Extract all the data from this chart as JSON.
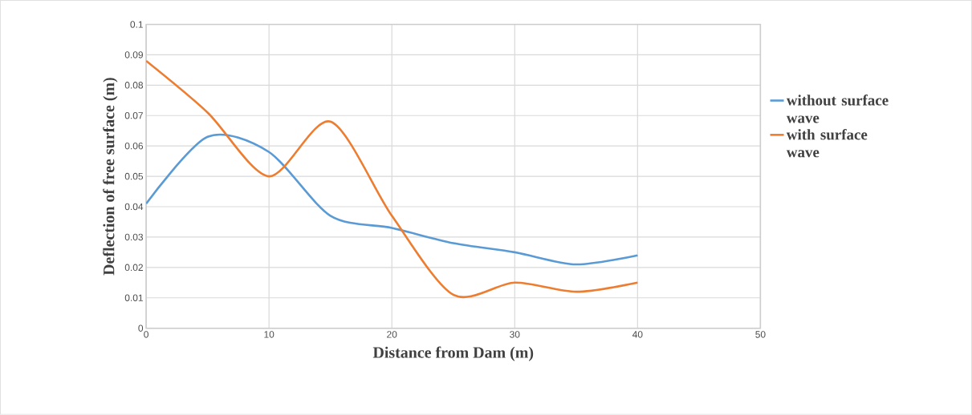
{
  "chart_data": {
    "type": "line",
    "xlabel": "Distance from Dam (m)",
    "ylabel": "Deflection of free surface (m)",
    "x": [
      0,
      5,
      10,
      15,
      20,
      25,
      30,
      35,
      40
    ],
    "series": [
      {
        "name": "without surface wave",
        "color": "#5b9bd5",
        "values": [
          0.041,
          0.063,
          0.058,
          0.037,
          0.033,
          0.028,
          0.025,
          0.021,
          0.024
        ]
      },
      {
        "name": "with surface wave",
        "color": "#ed7d31",
        "values": [
          0.088,
          0.071,
          0.05,
          0.068,
          0.037,
          0.011,
          0.015,
          0.012,
          0.015
        ]
      }
    ],
    "xlim": [
      0,
      50
    ],
    "xticks": [
      0,
      10,
      20,
      30,
      40,
      50
    ],
    "ylim": [
      0,
      0.1
    ],
    "yticks": [
      0,
      0.01,
      0.02,
      0.03,
      0.04,
      0.05,
      0.06,
      0.07,
      0.08,
      0.09,
      0.1
    ],
    "grid": true,
    "legend": "right",
    "marker": "none",
    "line_style": "solid"
  }
}
